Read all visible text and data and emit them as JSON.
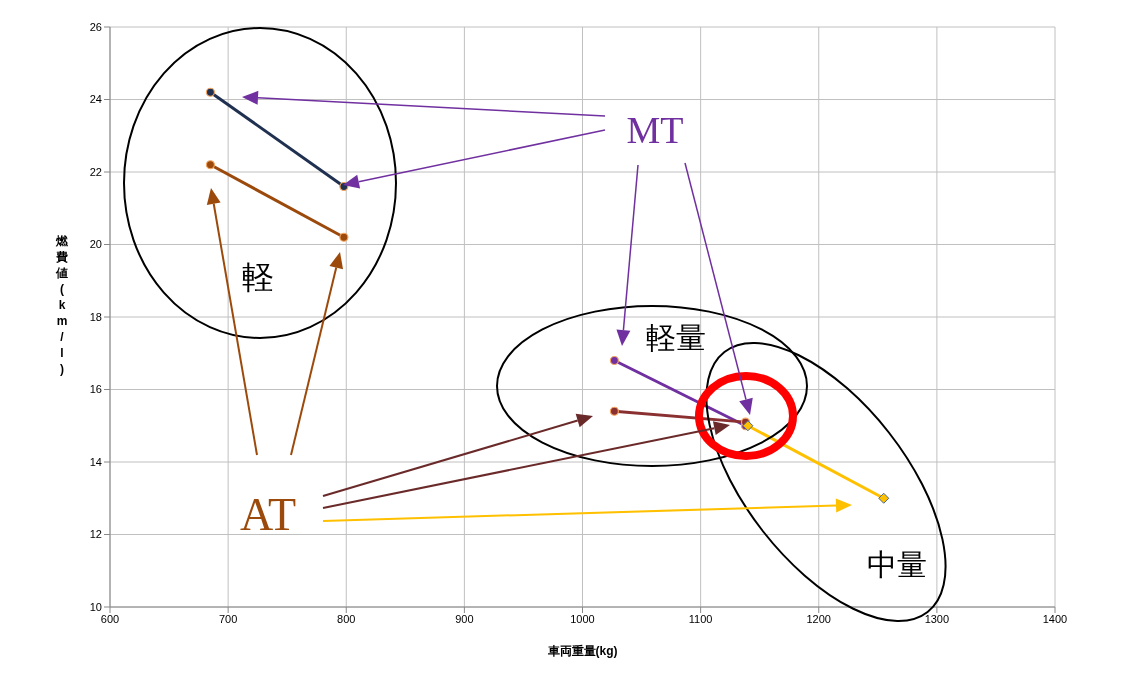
{
  "chart_data": {
    "type": "line",
    "xlabel": "車両重量(kg)",
    "ylabel": "燃費値(km/l)",
    "xlim": [
      600,
      1400
    ],
    "xticks": [
      600,
      700,
      800,
      900,
      1000,
      1100,
      1200,
      1300,
      1400
    ],
    "ylim": [
      10,
      26
    ],
    "yticks": [
      10,
      12,
      14,
      16,
      18,
      20,
      22,
      24,
      26
    ],
    "grid": true,
    "annotations": [
      "MT",
      "AT",
      "軽",
      "軽量",
      "中量"
    ],
    "series": [
      {
        "color": "#1f3050",
        "x": [
          685,
          798
        ],
        "values": [
          24.2,
          21.6
        ],
        "marker": "circle"
      },
      {
        "color": "#9c4a0c",
        "x": [
          685,
          798
        ],
        "values": [
          22.2,
          20.2
        ],
        "marker": "circle"
      },
      {
        "color": "#7030a0",
        "x": [
          1027,
          1138
        ],
        "values": [
          16.8,
          15.0
        ],
        "marker": "circle"
      },
      {
        "color": "#8b3030",
        "x": [
          1027,
          1138
        ],
        "values": [
          15.4,
          15.1
        ],
        "marker": "circle"
      },
      {
        "color": "#ffc000",
        "x": [
          1140,
          1255
        ],
        "values": [
          15.0,
          13.0
        ],
        "marker": "diamond"
      }
    ]
  }
}
